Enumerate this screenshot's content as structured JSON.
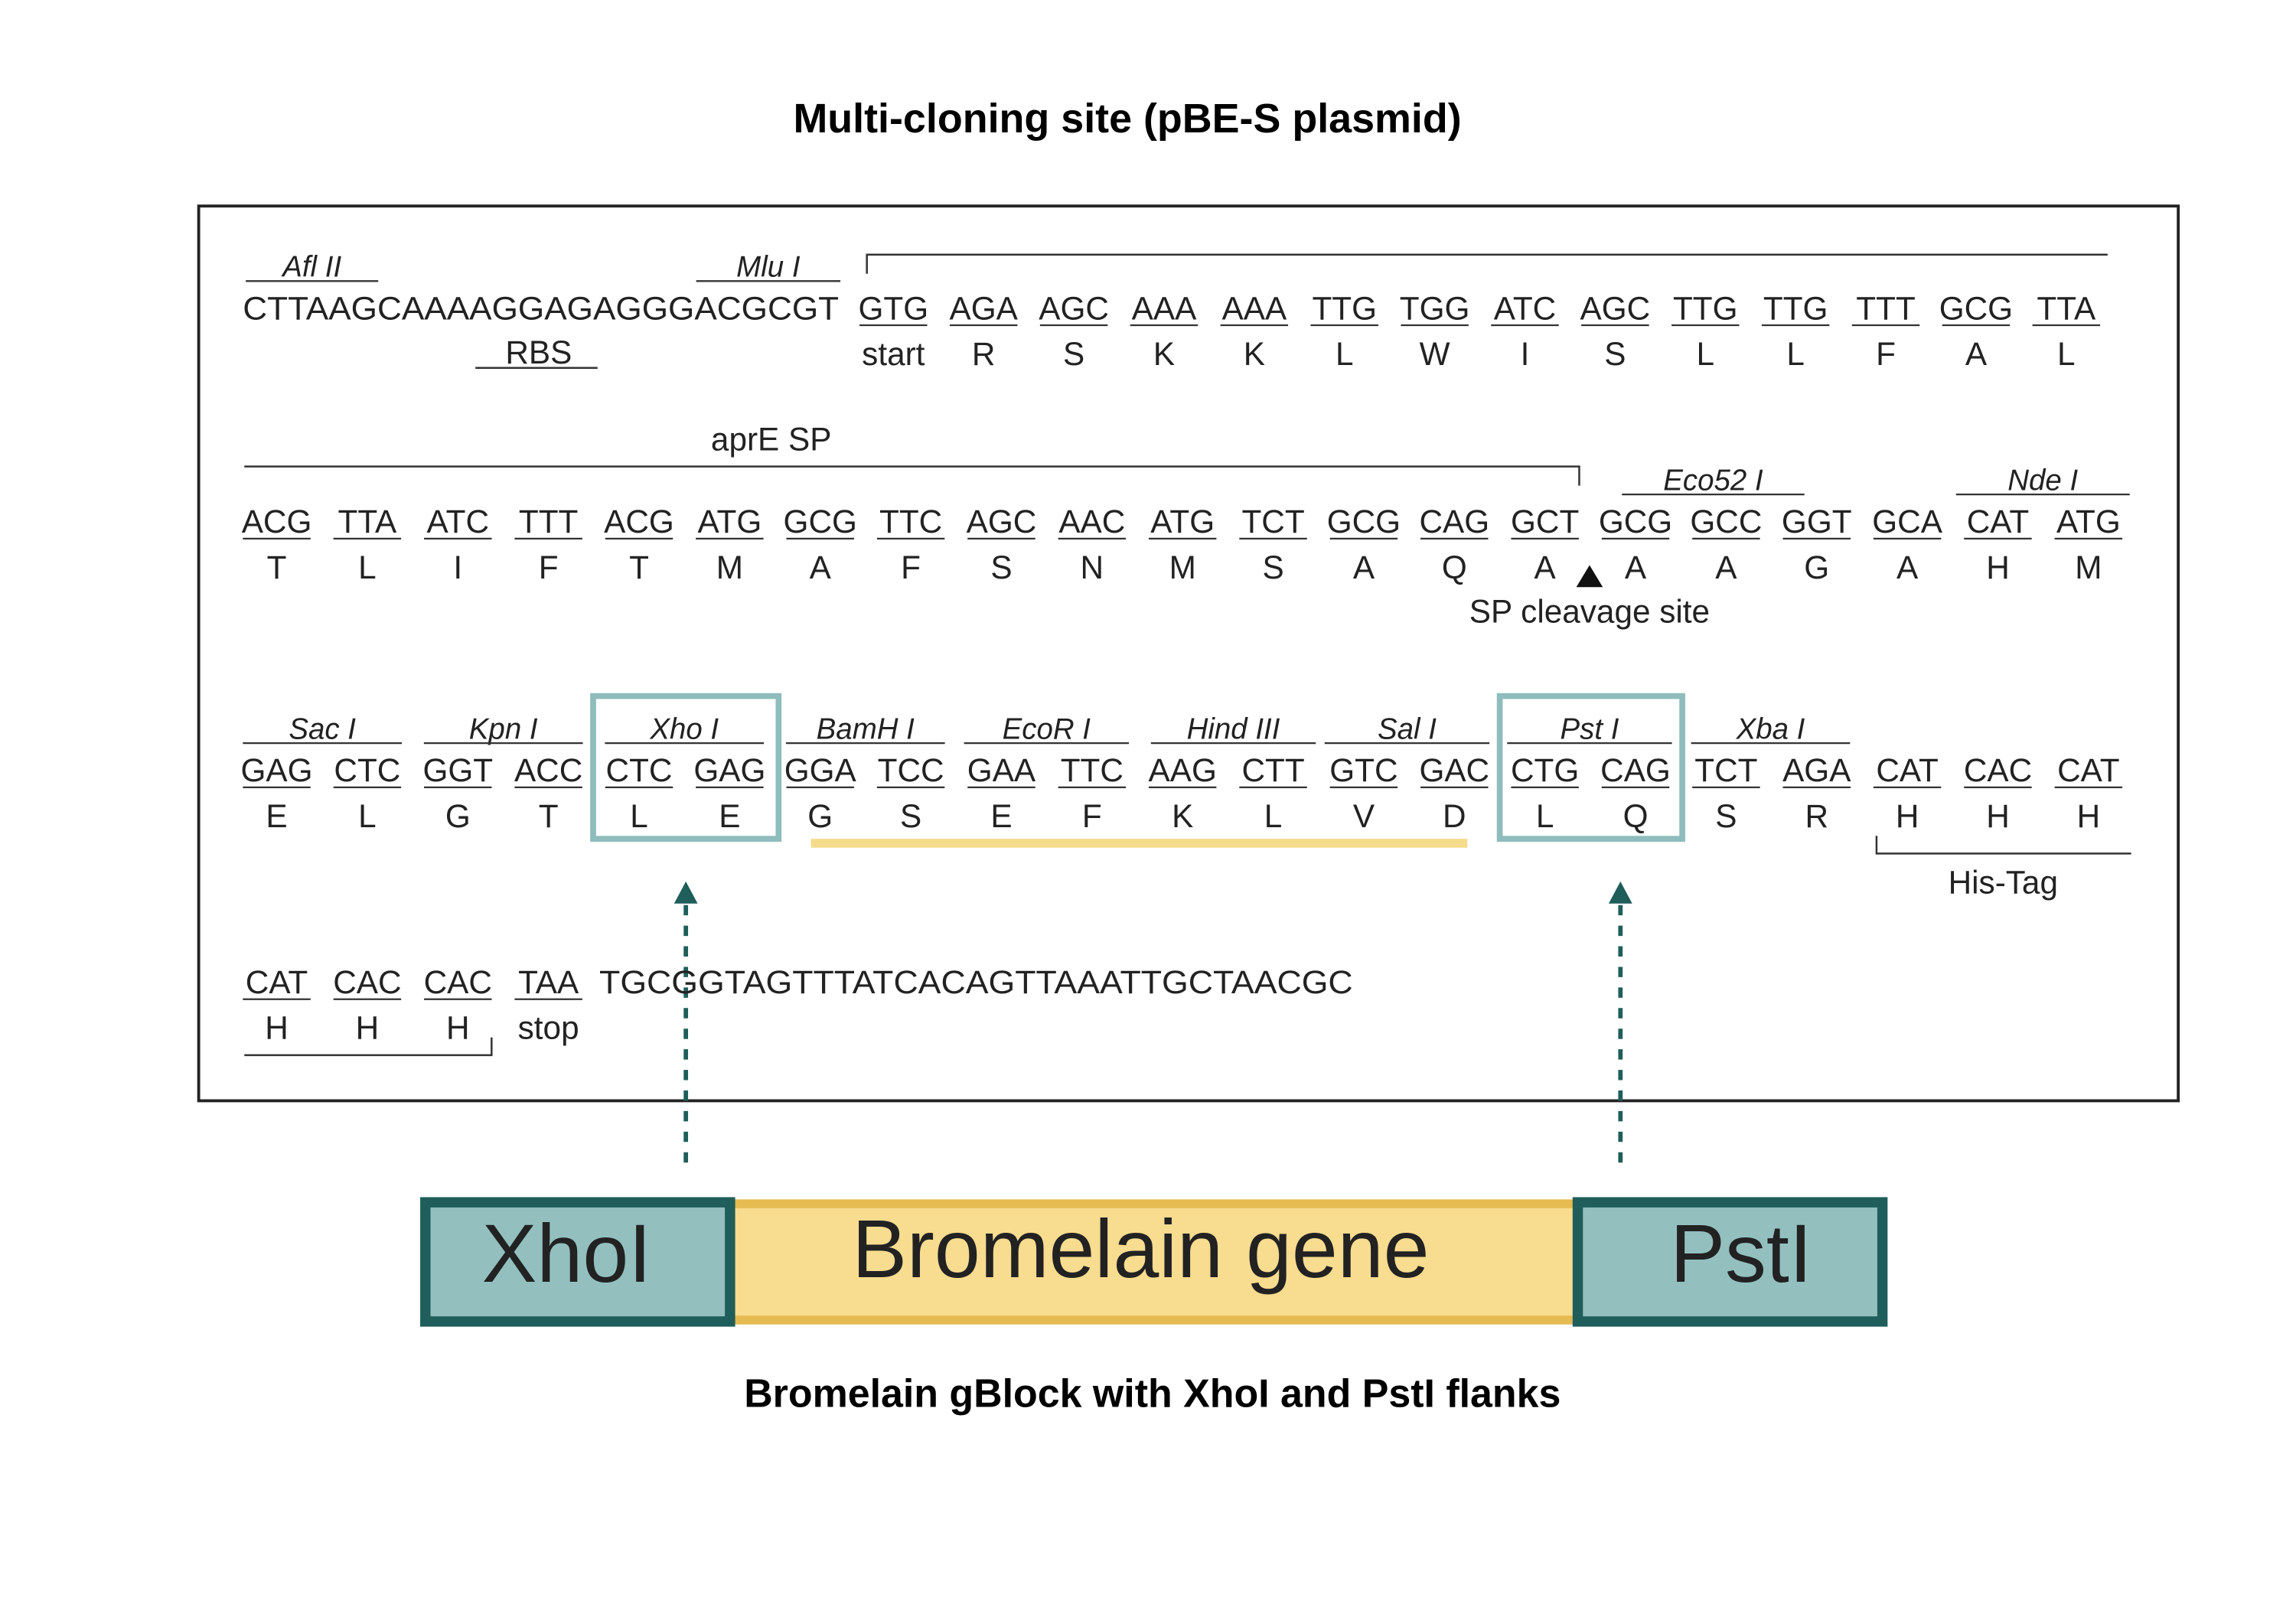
{
  "title": "Multi-cloning site (pBE-S plasmid)",
  "rows": [
    {
      "prefix": "CTTAAGCAAAAGGAGAGGGACGCGT",
      "codons": [
        "GTG",
        "AGA",
        "AGC",
        "AAA",
        "AAA",
        "TTG",
        "TGG",
        "ATC",
        "AGC",
        "TTG",
        "TTG",
        "TTT",
        "GCG",
        "TTA"
      ],
      "residues": [
        "start",
        "R",
        "S",
        "K",
        "K",
        "L",
        "W",
        "I",
        "S",
        "L",
        "L",
        "F",
        "A",
        "L"
      ],
      "enzymes": [
        "Afl II",
        "Mlu I"
      ]
    },
    {
      "codons": [
        "ACG",
        "TTA",
        "ATC",
        "TTT",
        "ACG",
        "ATG",
        "GCG",
        "TTC",
        "AGC",
        "AAC",
        "ATG",
        "TCT",
        "GCG",
        "CAG",
        "GCT",
        "GCG",
        "GCC",
        "GGT",
        "GCA",
        "CAT",
        "ATG"
      ],
      "residues": [
        "T",
        "L",
        "I",
        "F",
        "T",
        "M",
        "A",
        "F",
        "S",
        "N",
        "M",
        "S",
        "A",
        "Q",
        "A",
        "A",
        "A",
        "G",
        "A",
        "H",
        "M"
      ],
      "enzymes": [
        "Eco52 I",
        "Nde I"
      ]
    },
    {
      "codons": [
        "GAG",
        "CTC",
        "GGT",
        "ACC",
        "CTC",
        "GAG",
        "GGA",
        "TCC",
        "GAA",
        "TTC",
        "AAG",
        "CTT",
        "GTC",
        "GAC",
        "CTG",
        "CAG",
        "TCT",
        "AGA",
        "CAT",
        "CAC",
        "CAT"
      ],
      "residues": [
        "E",
        "L",
        "G",
        "T",
        "L",
        "E",
        "G",
        "S",
        "E",
        "F",
        "K",
        "L",
        "V",
        "D",
        "L",
        "Q",
        "S",
        "R",
        "H",
        "H",
        "H"
      ],
      "enzymes": [
        "Sac I",
        "Kpn I",
        "Xho I",
        "BamH I",
        "EcoR I",
        "Hind III",
        "Sal I",
        "Pst I",
        "Xba I"
      ]
    },
    {
      "codons": [
        "CAT",
        "CAC",
        "CAC",
        "TAA"
      ],
      "residues": [
        "H",
        "H",
        "H",
        "stop"
      ],
      "suffix": "TGCGGTAGTTTATCACAGTTAAATTGCTAACGC"
    }
  ],
  "annotations": {
    "rbs": "RBS",
    "signal_peptide": "aprE SP",
    "cleavage": "SP cleavage site",
    "his_tag": "His-Tag"
  },
  "gblock": {
    "left": "XhoI",
    "middle": "Bromelain gene",
    "right": "PstI",
    "caption": "Bromelain gBlock with XhoI and PstI flanks"
  }
}
